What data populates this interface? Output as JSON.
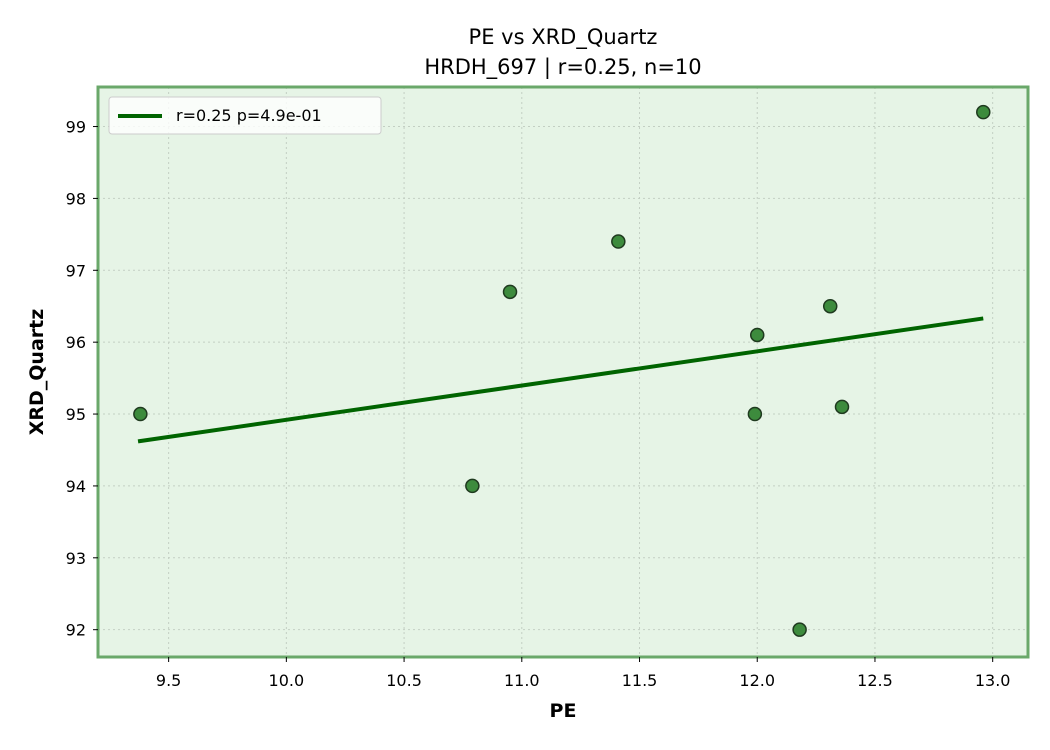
{
  "chart_data": {
    "type": "scatter",
    "title": "PE vs XRD_Quartz",
    "subtitle": "HRDH_697 | r=0.25, n=10",
    "xlabel": "PE",
    "ylabel": "XRD_Quartz",
    "xlim": [
      9.2,
      13.15
    ],
    "ylim": [
      91.62,
      99.55
    ],
    "xticks": [
      9.5,
      10.0,
      10.5,
      11.0,
      11.5,
      12.0,
      12.5,
      13.0
    ],
    "xtick_labels": [
      "9.5",
      "10.0",
      "10.5",
      "11.0",
      "11.5",
      "12.0",
      "12.5",
      "13.0"
    ],
    "yticks": [
      92,
      93,
      94,
      95,
      96,
      97,
      98,
      99
    ],
    "ytick_labels": [
      "92",
      "93",
      "94",
      "95",
      "96",
      "97",
      "98",
      "99"
    ],
    "grid": true,
    "legend_position": "top-left",
    "series": [
      {
        "kind": "points",
        "x": [
          9.38,
          10.79,
          10.95,
          11.41,
          11.99,
          12.0,
          12.18,
          12.31,
          12.36,
          12.96
        ],
        "y": [
          95.0,
          94.0,
          96.7,
          97.4,
          95.0,
          96.1,
          92.0,
          96.5,
          95.1,
          99.2
        ]
      },
      {
        "kind": "fit_line",
        "name": "r=0.25  p=4.9e-01",
        "x": [
          9.37,
          12.96
        ],
        "y": [
          94.62,
          96.33
        ]
      }
    ],
    "colors": {
      "background": "#e6f4e6",
      "frame": "#6aa86a",
      "point_fill": "#3d8b3d",
      "point_edge": "#1f3a1f",
      "fit_line": "#006400",
      "grid": "#c3cfc3"
    }
  }
}
